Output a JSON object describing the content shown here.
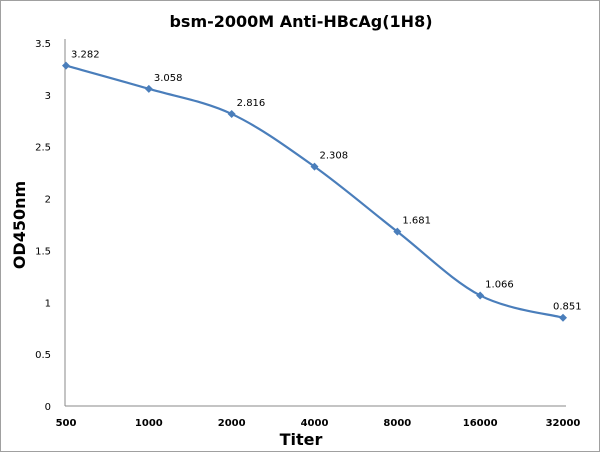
{
  "chart_data": {
    "type": "line",
    "title": "bsm-2000M Anti-HBcAg(1H8)",
    "xlabel": "Titer",
    "ylabel": "OD450nm",
    "categories": [
      "500",
      "1000",
      "2000",
      "4000",
      "8000",
      "16000",
      "32000"
    ],
    "series": [
      {
        "values": [
          3.282,
          3.058,
          2.816,
          2.308,
          1.681,
          1.066,
          0.851
        ],
        "color": "#4a7ebb",
        "smooth": true,
        "marker": "diamond"
      }
    ],
    "data_labels": [
      "3.282",
      "3.058",
      "2.816",
      "2.308",
      "1.681",
      "1.066",
      "0.851"
    ],
    "ylim": [
      0,
      3.5
    ],
    "yticks": [
      0,
      0.5,
      1,
      1.5,
      2,
      2.5,
      3,
      3.5
    ],
    "ytick_labels": [
      "0",
      "0.5",
      "1",
      "1.5",
      "2",
      "2.5",
      "3",
      "3.5"
    ],
    "grid": false,
    "legend": "none"
  }
}
